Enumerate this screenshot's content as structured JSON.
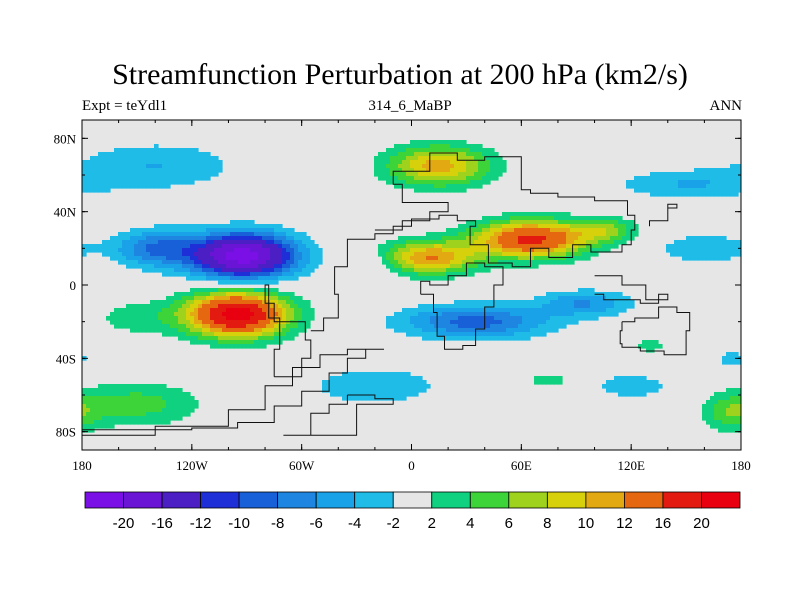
{
  "chart_data": {
    "type": "heatmap",
    "title": "Streamfunction Perturbation at 200 hPa (km2/s)",
    "subtitle_left": "Expt = teYdl1",
    "subtitle_center": "314_6_MaBP",
    "subtitle_right": "ANN",
    "x_range": [
      -180,
      180
    ],
    "y_range": [
      -90,
      90
    ],
    "x_ticks": [
      {
        "value": -180,
        "label": "180"
      },
      {
        "value": -120,
        "label": "120W"
      },
      {
        "value": -60,
        "label": "60W"
      },
      {
        "value": 0,
        "label": "0"
      },
      {
        "value": 60,
        "label": "60E"
      },
      {
        "value": 120,
        "label": "120E"
      },
      {
        "value": 180,
        "label": "180"
      }
    ],
    "y_ticks": [
      {
        "value": 80,
        "label": "80N"
      },
      {
        "value": 40,
        "label": "40N"
      },
      {
        "value": 0,
        "label": "0"
      },
      {
        "value": -40,
        "label": "40S"
      },
      {
        "value": -80,
        "label": "80S"
      }
    ],
    "colorbar": {
      "levels": [
        "-20",
        "-16",
        "-12",
        "-10",
        "-8",
        "-6",
        "-4",
        "-2",
        "2",
        "4",
        "6",
        "8",
        "10",
        "12",
        "16",
        "20"
      ],
      "colors": [
        "#7a10e6",
        "#6a14d6",
        "#4b1fc4",
        "#1f2fd8",
        "#1860d8",
        "#1e86e0",
        "#1aa2e8",
        "#1fbce8",
        "#e6e6e6",
        "#10d17f",
        "#3dd43a",
        "#9ed21c",
        "#d7d10c",
        "#e2a912",
        "#e56710",
        "#e21a10",
        "#e80010"
      ]
    },
    "field_blobs": [
      {
        "lon": -92,
        "lat": 16,
        "dlon": 28,
        "dlat": 12,
        "value": -22
      },
      {
        "lon": -140,
        "lat": 20,
        "dlon": 22,
        "dlat": 10,
        "value": -8
      },
      {
        "lon": -140,
        "lat": 65,
        "dlon": 45,
        "dlat": 13,
        "value": -4
      },
      {
        "lon": -95,
        "lat": -16,
        "dlon": 27,
        "dlat": 12,
        "value": 22
      },
      {
        "lon": -150,
        "lat": -65,
        "dlon": 35,
        "dlat": 12,
        "value": 5
      },
      {
        "lon": -150,
        "lat": -18,
        "dlon": 25,
        "dlat": 10,
        "value": 3
      },
      {
        "lon": 15,
        "lat": 65,
        "dlon": 28,
        "dlat": 11,
        "value": 11
      },
      {
        "lon": 65,
        "lat": 25,
        "dlon": 30,
        "dlat": 10,
        "value": 17
      },
      {
        "lon": 10,
        "lat": 15,
        "dlon": 26,
        "dlat": 9,
        "value": 12
      },
      {
        "lon": 105,
        "lat": 30,
        "dlon": 18,
        "dlat": 7,
        "value": 6
      },
      {
        "lon": 35,
        "lat": -20,
        "dlon": 40,
        "dlat": 9,
        "value": -9
      },
      {
        "lon": 95,
        "lat": -10,
        "dlon": 25,
        "dlat": 7,
        "value": -6
      },
      {
        "lon": -20,
        "lat": -55,
        "dlon": 35,
        "dlat": 10,
        "value": -4
      },
      {
        "lon": 150,
        "lat": 55,
        "dlon": 40,
        "dlat": 8,
        "value": -4
      },
      {
        "lon": 160,
        "lat": 20,
        "dlon": 25,
        "dlat": 8,
        "value": -4
      },
      {
        "lon": 120,
        "lat": -55,
        "dlon": 20,
        "dlat": 6,
        "value": -4
      },
      {
        "lon": 175,
        "lat": -70,
        "dlon": 15,
        "dlat": 10,
        "value": 5
      },
      {
        "lon": 75,
        "lat": -52,
        "dlon": 15,
        "dlat": 4,
        "value": 3
      },
      {
        "lon": 130,
        "lat": -33,
        "dlon": 10,
        "dlat": 4,
        "value": 3
      },
      {
        "lon": -20,
        "lat": 10,
        "dlon": 12,
        "dlat": 8,
        "value": -3
      },
      {
        "lon": 175,
        "lat": -40,
        "dlon": 10,
        "dlat": 5,
        "value": -3
      }
    ],
    "coastlines": [
      [
        [
          -180,
          -79
        ],
        [
          -150,
          -79
        ],
        [
          -120,
          -78
        ],
        [
          -95,
          -75
        ],
        [
          -75,
          -66
        ],
        [
          -60,
          -58
        ],
        [
          -45,
          -48
        ],
        [
          -35,
          -40
        ],
        [
          -25,
          -35
        ],
        [
          -15,
          -35
        ],
        [
          -35,
          -38
        ],
        [
          -50,
          -45
        ],
        [
          -65,
          -55
        ],
        [
          -80,
          -68
        ],
        [
          -100,
          -77
        ],
        [
          -140,
          -82
        ],
        [
          -180,
          -82
        ]
      ],
      [
        [
          -55,
          -25
        ],
        [
          -48,
          -18
        ],
        [
          -40,
          -5
        ],
        [
          -42,
          10
        ],
        [
          -35,
          25
        ],
        [
          -20,
          28
        ],
        [
          -10,
          32
        ],
        [
          0,
          36
        ],
        [
          15,
          38
        ],
        [
          25,
          35
        ],
        [
          35,
          32
        ],
        [
          32,
          22
        ],
        [
          42,
          12
        ],
        [
          55,
          10
        ],
        [
          65,
          20
        ],
        [
          75,
          15
        ],
        [
          88,
          22
        ],
        [
          98,
          18
        ],
        [
          108,
          18
        ],
        [
          115,
          22
        ],
        [
          120,
          30
        ],
        [
          122,
          38
        ],
        [
          118,
          46
        ],
        [
          100,
          48
        ],
        [
          80,
          50
        ],
        [
          65,
          52
        ],
        [
          60,
          70
        ],
        [
          40,
          68
        ],
        [
          25,
          72
        ],
        [
          10,
          62
        ],
        [
          -10,
          55
        ],
        [
          -5,
          45
        ],
        [
          10,
          45
        ],
        [
          20,
          40
        ],
        [
          10,
          35
        ],
        [
          -5,
          30
        ],
        [
          -20,
          30
        ]
      ],
      [
        [
          5,
          -5
        ],
        [
          12,
          -15
        ],
        [
          14,
          -28
        ],
        [
          18,
          -35
        ],
        [
          28,
          -33
        ],
        [
          35,
          -24
        ],
        [
          40,
          -12
        ],
        [
          45,
          0
        ],
        [
          50,
          10
        ],
        [
          40,
          12
        ],
        [
          30,
          5
        ],
        [
          20,
          0
        ],
        [
          10,
          2
        ],
        [
          5,
          -5
        ]
      ],
      [
        [
          115,
          -20
        ],
        [
          122,
          -18
        ],
        [
          135,
          -12
        ],
        [
          145,
          -15
        ],
        [
          152,
          -25
        ],
        [
          150,
          -38
        ],
        [
          138,
          -36
        ],
        [
          125,
          -34
        ],
        [
          115,
          -32
        ],
        [
          114,
          -25
        ],
        [
          115,
          -20
        ]
      ],
      [
        [
          -35,
          -60
        ],
        [
          -20,
          -62
        ],
        [
          -10,
          -65
        ],
        [
          -30,
          -82
        ],
        [
          -70,
          -82
        ],
        [
          -55,
          -70
        ],
        [
          -45,
          -65
        ],
        [
          -35,
          -60
        ]
      ],
      [
        [
          -75,
          -50
        ],
        [
          -60,
          -40
        ],
        [
          -55,
          -30
        ],
        [
          -58,
          -20
        ],
        [
          -75,
          -10
        ],
        [
          -80,
          0
        ],
        [
          -78,
          -18
        ],
        [
          -72,
          -35
        ],
        [
          -75,
          -50
        ]
      ],
      [
        [
          100,
          -5
        ],
        [
          105,
          -8
        ],
        [
          115,
          -8
        ],
        [
          125,
          -10
        ],
        [
          135,
          -5
        ],
        [
          140,
          -8
        ],
        [
          128,
          0
        ],
        [
          115,
          5
        ],
        [
          100,
          5
        ]
      ],
      [
        [
          130,
          35
        ],
        [
          140,
          42
        ],
        [
          145,
          44
        ],
        [
          140,
          35
        ],
        [
          130,
          32
        ]
      ]
    ]
  }
}
